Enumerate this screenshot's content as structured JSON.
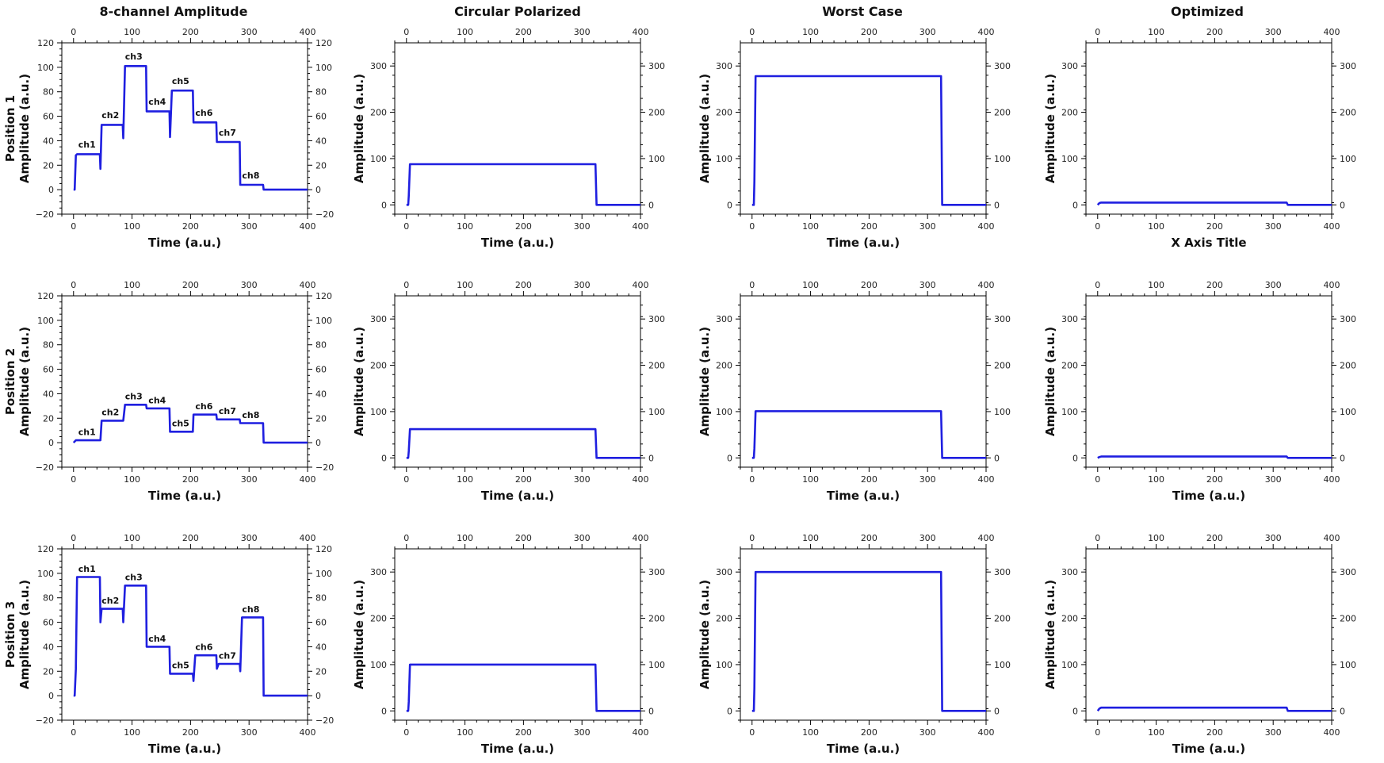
{
  "figure": {
    "column_titles": [
      "8-channel Amplitude",
      "Circular Polarized",
      "Worst Case",
      "Optimized"
    ],
    "row_titles": [
      [
        "Position 1",
        "Amplitude (a.u.)"
      ],
      [
        "Position 2",
        "Amplitude (a.u.)"
      ],
      [
        "Position 3",
        "Amplitude (a.u.)"
      ]
    ],
    "line_color": "#1f1fe0"
  },
  "chart_data": [
    {
      "id": "p1-amp",
      "type": "line",
      "xlabel": "Time (a.u.)",
      "ylabel": "",
      "xlim": [
        -20,
        400
      ],
      "ylim": [
        -20,
        120
      ],
      "xticks": [
        0,
        100,
        200,
        300,
        400
      ],
      "yticks": [
        -20,
        0,
        20,
        40,
        60,
        80,
        100,
        120
      ],
      "x": [
        0,
        2,
        4,
        6,
        45,
        46,
        48,
        50,
        84,
        85,
        88,
        90,
        124,
        125,
        128,
        130,
        164,
        165,
        168,
        170,
        204,
        205,
        208,
        210,
        244,
        245,
        248,
        250,
        284,
        285,
        288,
        290,
        324,
        325,
        400
      ],
      "y": [
        0,
        0,
        28,
        29,
        29,
        17,
        53,
        53,
        53,
        42,
        101,
        101,
        101,
        64,
        64,
        64,
        64,
        43,
        81,
        81,
        81,
        55,
        55,
        55,
        55,
        39,
        39,
        39,
        39,
        4,
        4,
        4,
        4,
        0,
        0
      ],
      "annotations": [
        {
          "text": "ch1",
          "x": 23,
          "y": 33
        },
        {
          "text": "ch2",
          "x": 63,
          "y": 57
        },
        {
          "text": "ch3",
          "x": 103,
          "y": 105
        },
        {
          "text": "ch4",
          "x": 143,
          "y": 68
        },
        {
          "text": "ch5",
          "x": 183,
          "y": 85
        },
        {
          "text": "ch6",
          "x": 223,
          "y": 59
        },
        {
          "text": "ch7",
          "x": 263,
          "y": 43
        },
        {
          "text": "ch8",
          "x": 303,
          "y": 8
        }
      ]
    },
    {
      "id": "p1-cp",
      "type": "line",
      "xlabel": "Time (a.u.)",
      "ylabel": "Amplitude (a.u.)",
      "xlim": [
        -20,
        400
      ],
      "ylim": [
        -20,
        350
      ],
      "xticks": [
        0,
        100,
        200,
        300,
        400
      ],
      "yticks": [
        0,
        100,
        200,
        300
      ],
      "x": [
        0,
        3,
        4,
        6,
        323,
        325,
        400
      ],
      "y": [
        0,
        0,
        20,
        88,
        88,
        0,
        0
      ]
    },
    {
      "id": "p1-wc",
      "type": "line",
      "xlabel": "Time (a.u.)",
      "ylabel": "Amplitude (a.u.)",
      "xlim": [
        -20,
        400
      ],
      "ylim": [
        -20,
        350
      ],
      "xticks": [
        0,
        100,
        200,
        300,
        400
      ],
      "yticks": [
        0,
        100,
        200,
        300
      ],
      "x": [
        0,
        3,
        4,
        6,
        323,
        325,
        400
      ],
      "y": [
        0,
        0,
        50,
        278,
        278,
        0,
        0
      ]
    },
    {
      "id": "p1-opt",
      "type": "line",
      "xlabel": "",
      "ylabel": "Amplitude (a.u.)",
      "xlim": [
        -20,
        400
      ],
      "ylim": [
        -20,
        350
      ],
      "xticks": [
        0,
        100,
        200,
        300,
        400
      ],
      "yticks": [
        0,
        100,
        200,
        300
      ],
      "x": [
        0,
        3,
        6,
        323,
        325,
        400
      ],
      "y": [
        0,
        4,
        5,
        5,
        0,
        0
      ]
    },
    {
      "id": "p2-amp",
      "type": "line",
      "xlabel": "Time (a.u.)",
      "ylabel": "",
      "xlim": [
        -20,
        400
      ],
      "ylim": [
        -20,
        120
      ],
      "xticks": [
        0,
        100,
        200,
        300,
        400
      ],
      "yticks": [
        -20,
        0,
        20,
        40,
        60,
        80,
        100,
        120
      ],
      "x": [
        0,
        4,
        6,
        45,
        46,
        48,
        50,
        84,
        85,
        88,
        90,
        124,
        125,
        128,
        130,
        164,
        165,
        168,
        170,
        204,
        205,
        208,
        210,
        244,
        245,
        248,
        250,
        284,
        285,
        288,
        290,
        324,
        325,
        400
      ],
      "y": [
        0,
        2,
        2,
        2,
        2,
        18,
        18,
        18,
        18,
        31,
        31,
        31,
        28,
        28,
        28,
        28,
        9,
        9,
        9,
        9,
        23,
        23,
        23,
        23,
        19,
        19,
        19,
        19,
        16,
        16,
        16,
        16,
        0,
        0
      ],
      "annotations": [
        {
          "text": "ch1",
          "x": 23,
          "y": 5
        },
        {
          "text": "ch2",
          "x": 63,
          "y": 21
        },
        {
          "text": "ch3",
          "x": 103,
          "y": 34
        },
        {
          "text": "ch4",
          "x": 143,
          "y": 31
        },
        {
          "text": "ch5",
          "x": 183,
          "y": 12
        },
        {
          "text": "ch6",
          "x": 223,
          "y": 26
        },
        {
          "text": "ch7",
          "x": 263,
          "y": 22
        },
        {
          "text": "ch8",
          "x": 303,
          "y": 19
        }
      ]
    },
    {
      "id": "p2-cp",
      "type": "line",
      "xlabel": "Time (a.u.)",
      "ylabel": "Amplitude (a.u.)",
      "xlim": [
        -20,
        400
      ],
      "ylim": [
        -20,
        350
      ],
      "xticks": [
        0,
        100,
        200,
        300,
        400
      ],
      "yticks": [
        0,
        100,
        200,
        300
      ],
      "x": [
        0,
        3,
        4,
        6,
        323,
        325,
        400
      ],
      "y": [
        0,
        0,
        15,
        62,
        62,
        0,
        0
      ]
    },
    {
      "id": "p2-wc",
      "type": "line",
      "xlabel": "Time (a.u.)",
      "ylabel": "Amplitude (a.u.)",
      "xlim": [
        -20,
        400
      ],
      "ylim": [
        -20,
        350
      ],
      "xticks": [
        0,
        100,
        200,
        300,
        400
      ],
      "yticks": [
        0,
        100,
        200,
        300
      ],
      "x": [
        0,
        3,
        4,
        6,
        323,
        325,
        400
      ],
      "y": [
        0,
        0,
        20,
        101,
        101,
        0,
        0
      ]
    },
    {
      "id": "p2-opt",
      "type": "line",
      "xlabel": "Time (a.u.)",
      "ylabel": "Amplitude (a.u.)",
      "xlim": [
        -20,
        400
      ],
      "ylim": [
        -20,
        350
      ],
      "xticks": [
        0,
        100,
        200,
        300,
        400
      ],
      "yticks": [
        0,
        100,
        200,
        300
      ],
      "x": [
        0,
        3,
        6,
        323,
        325,
        400
      ],
      "y": [
        0,
        2,
        3,
        3,
        0,
        0
      ]
    },
    {
      "id": "p3-amp",
      "type": "line",
      "xlabel": "Time (a.u.)",
      "ylabel": "",
      "xlim": [
        -20,
        400
      ],
      "ylim": [
        -20,
        120
      ],
      "xticks": [
        0,
        100,
        200,
        300,
        400
      ],
      "yticks": [
        -20,
        0,
        20,
        40,
        60,
        80,
        100,
        120
      ],
      "x": [
        0,
        2,
        4,
        6,
        45,
        46,
        48,
        50,
        84,
        85,
        88,
        90,
        124,
        125,
        128,
        130,
        164,
        165,
        168,
        170,
        204,
        205,
        208,
        210,
        244,
        245,
        248,
        250,
        284,
        285,
        288,
        290,
        324,
        325,
        400
      ],
      "y": [
        0,
        0,
        22,
        97,
        97,
        60,
        71,
        71,
        71,
        60,
        90,
        90,
        90,
        40,
        40,
        40,
        40,
        18,
        18,
        18,
        18,
        12,
        33,
        33,
        33,
        22,
        26,
        26,
        26,
        20,
        64,
        64,
        64,
        0,
        0
      ],
      "annotations": [
        {
          "text": "ch1",
          "x": 23,
          "y": 100
        },
        {
          "text": "ch2",
          "x": 63,
          "y": 74
        },
        {
          "text": "ch3",
          "x": 103,
          "y": 93
        },
        {
          "text": "ch4",
          "x": 143,
          "y": 43
        },
        {
          "text": "ch5",
          "x": 183,
          "y": 21
        },
        {
          "text": "ch6",
          "x": 223,
          "y": 36
        },
        {
          "text": "ch7",
          "x": 263,
          "y": 29
        },
        {
          "text": "ch8",
          "x": 303,
          "y": 67
        }
      ]
    },
    {
      "id": "p3-cp",
      "type": "line",
      "xlabel": "Time (a.u.)",
      "ylabel": "Amplitude (a.u.)",
      "xlim": [
        -20,
        400
      ],
      "ylim": [
        -20,
        350
      ],
      "xticks": [
        0,
        100,
        200,
        300,
        400
      ],
      "yticks": [
        0,
        100,
        200,
        300
      ],
      "x": [
        0,
        3,
        4,
        6,
        323,
        325,
        400
      ],
      "y": [
        0,
        0,
        20,
        100,
        100,
        0,
        0
      ]
    },
    {
      "id": "p3-wc",
      "type": "line",
      "xlabel": "Time (a.u.)",
      "ylabel": "Amplitude (a.u.)",
      "xlim": [
        -20,
        400
      ],
      "ylim": [
        -20,
        350
      ],
      "xticks": [
        0,
        100,
        200,
        300,
        400
      ],
      "yticks": [
        0,
        100,
        200,
        300
      ],
      "x": [
        0,
        3,
        4,
        6,
        323,
        325,
        400
      ],
      "y": [
        0,
        0,
        50,
        300,
        300,
        0,
        0
      ]
    },
    {
      "id": "p3-opt",
      "type": "line",
      "xlabel": "Time (a.u.)",
      "ylabel": "Amplitude (a.u.)",
      "xlim": [
        -20,
        400
      ],
      "ylim": [
        -20,
        350
      ],
      "xticks": [
        0,
        100,
        200,
        300,
        400
      ],
      "yticks": [
        0,
        100,
        200,
        300
      ],
      "x": [
        0,
        3,
        6,
        323,
        325,
        400
      ],
      "y": [
        0,
        5,
        7,
        7,
        0,
        0
      ]
    }
  ]
}
